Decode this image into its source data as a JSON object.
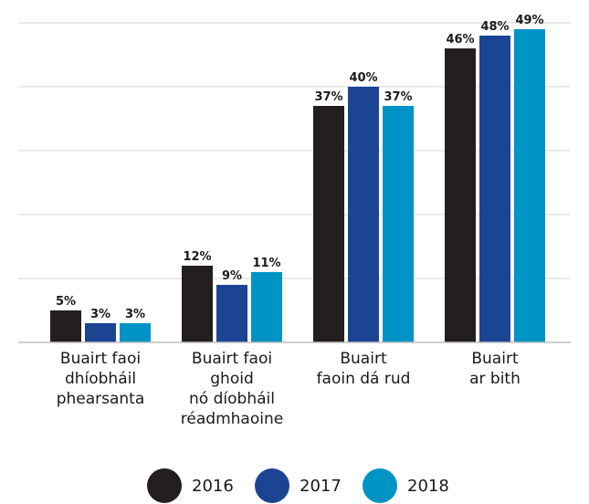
{
  "chart_data": {
    "type": "bar",
    "categories": [
      [
        "Buairt faoi",
        "dhíobháil",
        "phearsanta"
      ],
      [
        "Buairt faoi",
        "ghoid",
        "nó díobháil",
        "réadmhaoine"
      ],
      [
        "Buairt",
        "faoin dá rud"
      ],
      [
        "Buairt",
        "ar bith"
      ]
    ],
    "series": [
      {
        "name": "2016",
        "color": "#231f20",
        "values": [
          5,
          12,
          37,
          46
        ]
      },
      {
        "name": "2017",
        "color": "#1b4592",
        "values": [
          3,
          9,
          40,
          48
        ]
      },
      {
        "name": "2018",
        "color": "#0093c6",
        "values": [
          3,
          11,
          37,
          49
        ]
      }
    ],
    "value_suffix": "%",
    "ylim": [
      0,
      50
    ],
    "grid": true,
    "legend_position": "bottom"
  }
}
